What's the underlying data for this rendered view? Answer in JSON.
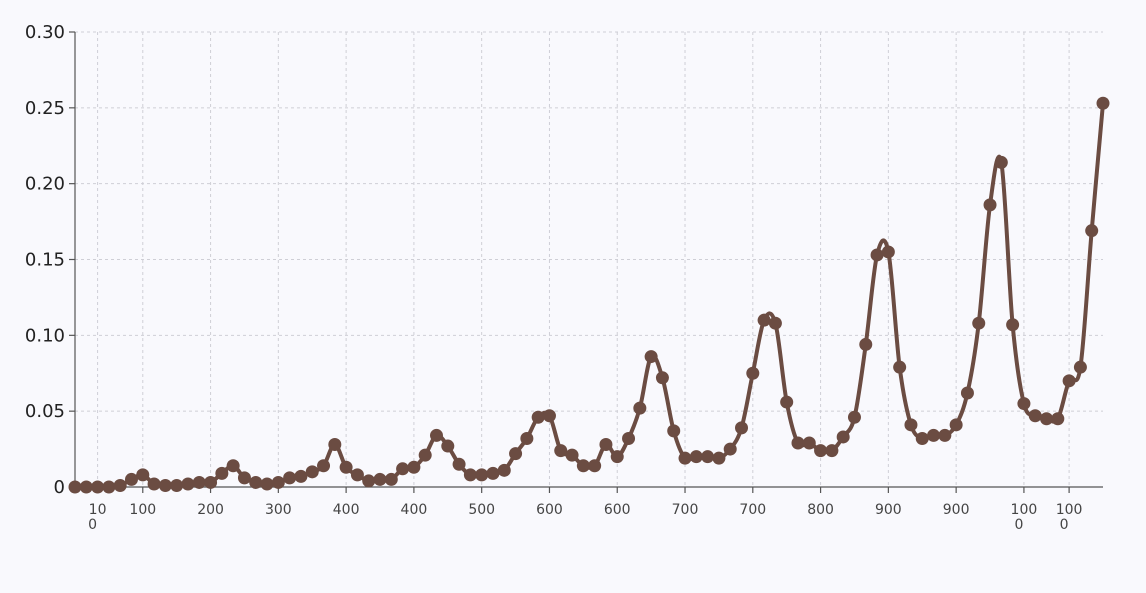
{
  "chart_data": {
    "type": "line",
    "title": "",
    "xlabel": "",
    "ylabel": "",
    "ylim": [
      0,
      0.3
    ],
    "grid": true,
    "legend": "none",
    "line_color": "#6b4c42",
    "y_ticks": [
      {
        "value": 0,
        "label": "0"
      },
      {
        "value": 0.05,
        "label": "0.05"
      },
      {
        "value": 0.1,
        "label": "0.10"
      },
      {
        "value": 0.15,
        "label": "0.15"
      },
      {
        "value": 0.2,
        "label": "0.20"
      },
      {
        "value": 0.25,
        "label": "0.25"
      },
      {
        "value": 0.3,
        "label": "0.30"
      }
    ],
    "x_ticks": [
      {
        "index": 2,
        "line1": "10",
        "line2": "0"
      },
      {
        "index": 6,
        "line1": "100",
        "line2": ""
      },
      {
        "index": 12,
        "line1": "200",
        "line2": ""
      },
      {
        "index": 18,
        "line1": "300",
        "line2": ""
      },
      {
        "index": 24,
        "line1": "400",
        "line2": ""
      },
      {
        "index": 30,
        "line1": "400",
        "line2": ""
      },
      {
        "index": 36,
        "line1": "500",
        "line2": ""
      },
      {
        "index": 42,
        "line1": "600",
        "line2": ""
      },
      {
        "index": 48,
        "line1": "600",
        "line2": ""
      },
      {
        "index": 54,
        "line1": "700",
        "line2": ""
      },
      {
        "index": 60,
        "line1": "700",
        "line2": ""
      },
      {
        "index": 66,
        "line1": "800",
        "line2": ""
      },
      {
        "index": 72,
        "line1": "900",
        "line2": ""
      },
      {
        "index": 78,
        "line1": "900",
        "line2": ""
      },
      {
        "index": 84,
        "line1": "100",
        "line2": "0"
      },
      {
        "index": 88,
        "line1": "100",
        "line2": "0"
      }
    ],
    "x_range": [
      0,
      91
    ],
    "values": [
      0.0,
      0.0,
      0.0,
      0.0,
      0.001,
      0.005,
      0.008,
      0.002,
      0.001,
      0.001,
      0.002,
      0.003,
      0.003,
      0.009,
      0.014,
      0.006,
      0.003,
      0.002,
      0.003,
      0.006,
      0.007,
      0.01,
      0.014,
      0.028,
      0.013,
      0.008,
      0.004,
      0.005,
      0.005,
      0.012,
      0.013,
      0.021,
      0.034,
      0.027,
      0.015,
      0.008,
      0.008,
      0.009,
      0.011,
      0.022,
      0.032,
      0.046,
      0.047,
      0.024,
      0.021,
      0.014,
      0.014,
      0.028,
      0.02,
      0.032,
      0.052,
      0.086,
      0.072,
      0.037,
      0.019,
      0.02,
      0.02,
      0.019,
      0.025,
      0.039,
      0.075,
      0.11,
      0.108,
      0.056,
      0.029,
      0.029,
      0.024,
      0.024,
      0.033,
      0.046,
      0.094,
      0.153,
      0.155,
      0.079,
      0.041,
      0.032,
      0.034,
      0.034,
      0.041,
      0.062,
      0.108,
      0.186,
      0.214,
      0.107,
      0.055,
      0.047,
      0.045,
      0.045,
      0.07,
      0.079,
      0.169,
      0.253
    ]
  }
}
